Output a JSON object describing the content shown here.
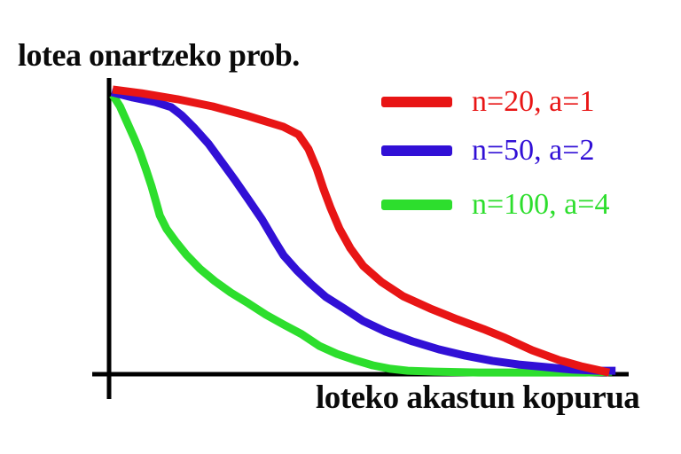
{
  "chart_data": {
    "type": "line",
    "title": "lotea onartzeko prob.",
    "xlabel": "loteko akastun kopurua",
    "ylabel": "lotea onartzeko prob.",
    "x_axis": {
      "range": [
        0,
        1
      ],
      "ticks": "none"
    },
    "y_axis": {
      "range": [
        0,
        1
      ],
      "ticks": "none"
    },
    "grid": false,
    "legend_position": "top-right",
    "axis_color": "#000000",
    "series": [
      {
        "name": "n=20, a=1",
        "n": 20,
        "a": 1,
        "color": "#e81515",
        "points": [
          [
            0.007,
            0.997
          ],
          [
            0.063,
            0.984
          ],
          [
            0.132,
            0.963
          ],
          [
            0.2,
            0.938
          ],
          [
            0.269,
            0.904
          ],
          [
            0.337,
            0.866
          ],
          [
            0.366,
            0.839
          ],
          [
            0.385,
            0.789
          ],
          [
            0.401,
            0.72
          ],
          [
            0.414,
            0.649
          ],
          [
            0.428,
            0.581
          ],
          [
            0.445,
            0.509
          ],
          [
            0.466,
            0.441
          ],
          [
            0.491,
            0.379
          ],
          [
            0.526,
            0.323
          ],
          [
            0.568,
            0.273
          ],
          [
            0.62,
            0.23
          ],
          [
            0.671,
            0.193
          ],
          [
            0.723,
            0.158
          ],
          [
            0.765,
            0.127
          ],
          [
            0.817,
            0.084
          ],
          [
            0.868,
            0.05
          ],
          [
            0.911,
            0.028
          ],
          [
            0.94,
            0.016
          ],
          [
            0.966,
            0.006
          ]
        ]
      },
      {
        "name": "n=50, a=2",
        "n": 50,
        "a": 2,
        "color": "#3110d6",
        "points": [
          [
            0.005,
            0.988
          ],
          [
            0.046,
            0.969
          ],
          [
            0.089,
            0.953
          ],
          [
            0.12,
            0.935
          ],
          [
            0.14,
            0.907
          ],
          [
            0.166,
            0.86
          ],
          [
            0.192,
            0.807
          ],
          [
            0.217,
            0.745
          ],
          [
            0.243,
            0.68
          ],
          [
            0.269,
            0.612
          ],
          [
            0.295,
            0.543
          ],
          [
            0.32,
            0.466
          ],
          [
            0.337,
            0.416
          ],
          [
            0.363,
            0.363
          ],
          [
            0.389,
            0.317
          ],
          [
            0.419,
            0.27
          ],
          [
            0.454,
            0.23
          ],
          [
            0.491,
            0.186
          ],
          [
            0.534,
            0.149
          ],
          [
            0.586,
            0.115
          ],
          [
            0.637,
            0.087
          ],
          [
            0.688,
            0.065
          ],
          [
            0.74,
            0.047
          ],
          [
            0.791,
            0.034
          ],
          [
            0.842,
            0.025
          ],
          [
            0.894,
            0.016
          ],
          [
            0.945,
            0.012
          ],
          [
            0.978,
            0.012
          ]
        ]
      },
      {
        "name": "n=100, a=4",
        "n": 100,
        "a": 4,
        "color": "#2dde2d",
        "points": [
          [
            0.007,
            0.978
          ],
          [
            0.021,
            0.938
          ],
          [
            0.034,
            0.885
          ],
          [
            0.048,
            0.829
          ],
          [
            0.06,
            0.776
          ],
          [
            0.072,
            0.714
          ],
          [
            0.082,
            0.658
          ],
          [
            0.091,
            0.602
          ],
          [
            0.098,
            0.556
          ],
          [
            0.111,
            0.509
          ],
          [
            0.128,
            0.466
          ],
          [
            0.149,
            0.419
          ],
          [
            0.175,
            0.37
          ],
          [
            0.204,
            0.326
          ],
          [
            0.235,
            0.286
          ],
          [
            0.269,
            0.248
          ],
          [
            0.303,
            0.208
          ],
          [
            0.337,
            0.174
          ],
          [
            0.372,
            0.14
          ],
          [
            0.406,
            0.099
          ],
          [
            0.44,
            0.071
          ],
          [
            0.474,
            0.05
          ],
          [
            0.509,
            0.031
          ],
          [
            0.543,
            0.019
          ],
          [
            0.577,
            0.012
          ],
          [
            0.628,
            0.009
          ],
          [
            0.714,
            0.006
          ],
          [
            0.817,
            0.006
          ],
          [
            0.92,
            0.006
          ],
          [
            0.971,
            0.009
          ]
        ]
      }
    ]
  }
}
